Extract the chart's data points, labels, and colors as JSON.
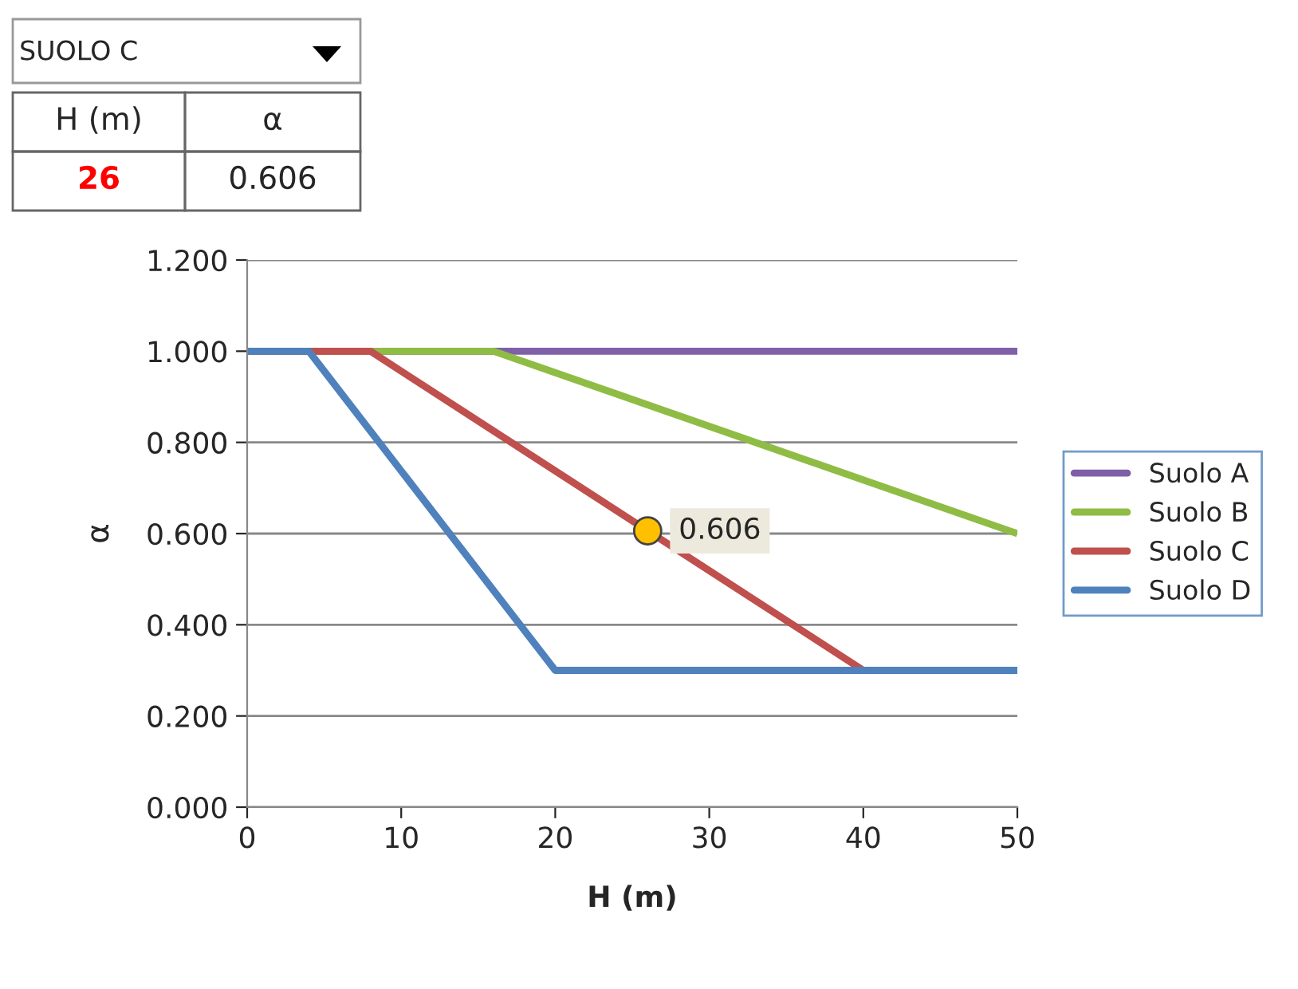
{
  "chart_data": {
    "type": "line",
    "xlabel": "H (m)",
    "ylabel": "α",
    "annotations": [
      "SUOLO C",
      "H (m)",
      "α",
      "26",
      "0.606"
    ],
    "series": [
      {
        "name": "Suolo A",
        "color": "#7f5fa8",
        "x": [
          0,
          50
        ],
        "values": [
          1.0,
          1.0
        ]
      },
      {
        "name": "Suolo B",
        "color": "#8fbc45",
        "x": [
          0,
          16,
          50
        ],
        "values": [
          1.0,
          1.0,
          0.6
        ]
      },
      {
        "name": "Suolo C",
        "color": "#c0504d",
        "x": [
          0,
          8,
          40
        ],
        "values": [
          1.0,
          1.0,
          0.3
        ]
      },
      {
        "name": "Suolo D",
        "color": "#4f81bd",
        "x": [
          0,
          4,
          20,
          50
        ],
        "values": [
          1.0,
          1.0,
          0.3,
          0.3
        ]
      },
      {
        "type": "scatter",
        "color": "#ffc000",
        "x": [
          26
        ],
        "values": [
          0.606
        ],
        "value_labels": [
          "0.606"
        ],
        "marker": "circle"
      }
    ],
    "xlim": [
      0,
      50
    ],
    "xticks": [
      0,
      10,
      20,
      30,
      40,
      50
    ],
    "ylim": [
      0,
      1.2
    ],
    "yticks": [
      {
        "value": 0,
        "label": "0.000"
      },
      {
        "value": 0.2,
        "label": "0.200"
      },
      {
        "value": 0.4,
        "label": "0.400"
      },
      {
        "value": 0.6,
        "label": "0.600"
      },
      {
        "value": 0.8,
        "label": "0.800"
      },
      {
        "value": 1.0,
        "label": "1.000"
      },
      {
        "value": 1.2,
        "label": "1.200"
      }
    ],
    "grid": "y",
    "legend": "right",
    "line_style": "solid",
    "marker": "none"
  }
}
